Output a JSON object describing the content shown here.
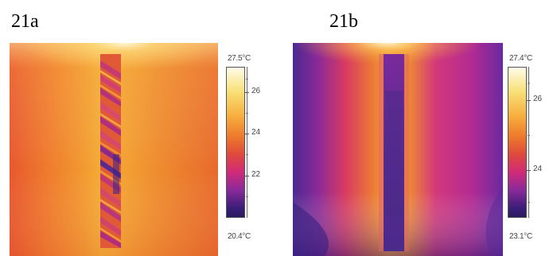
{
  "panels": [
    {
      "label": "21a",
      "scale": {
        "max_label": "27.5°C",
        "min_label": "20.4°C",
        "min": 20.4,
        "max": 27.5,
        "ticks": [
          "26",
          "24",
          "22"
        ]
      }
    },
    {
      "label": "21b",
      "scale": {
        "max_label": "27.4°C",
        "min_label": "23.1°C",
        "min": 23.1,
        "max": 27.4,
        "ticks": [
          "26",
          "24"
        ]
      }
    }
  ],
  "palette": [
    "#2a1a6e",
    "#6a2aa0",
    "#c22a8c",
    "#e8484a",
    "#f08a30",
    "#f8c848",
    "#fff8d8"
  ]
}
